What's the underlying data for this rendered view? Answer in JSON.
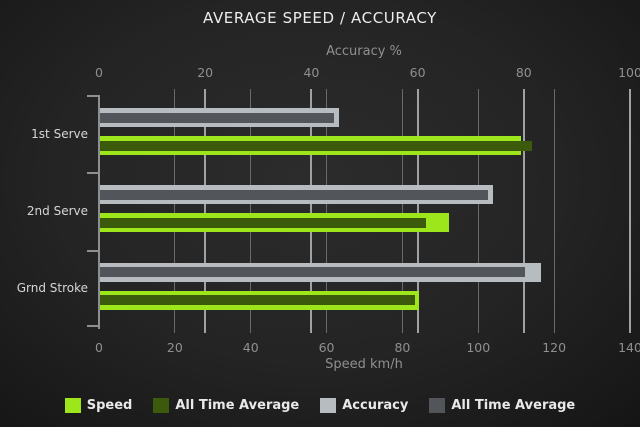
{
  "title": "AVERAGE SPEED / ACCURACY",
  "chart_data": {
    "type": "bar",
    "orientation": "horizontal",
    "title": "AVERAGE SPEED / ACCURACY",
    "categories": [
      "1st Serve",
      "2nd Serve",
      "Grnd Stroke"
    ],
    "axes": {
      "top": {
        "label": "Accuracy %",
        "min": 0,
        "max": 100,
        "ticks": [
          0,
          20,
          40,
          60,
          80,
          100
        ]
      },
      "bottom": {
        "label": "Speed km/h",
        "min": 0,
        "max": 140,
        "ticks": [
          0,
          20,
          40,
          60,
          80,
          100,
          120,
          140
        ]
      }
    },
    "series": [
      {
        "name": "Speed",
        "axis": "bottom",
        "color": "#9de61c",
        "role": "outer",
        "values": [
          111,
          92,
          84
        ]
      },
      {
        "name": "All Time Average",
        "axis": "bottom",
        "color": "#3c5a0c",
        "role": "inner",
        "values": [
          114,
          86,
          83
        ]
      },
      {
        "name": "Accuracy",
        "axis": "top",
        "color": "#b7bcc1",
        "role": "outer",
        "values": [
          45,
          74,
          83
        ]
      },
      {
        "name": "All Time Average",
        "axis": "top",
        "color": "#52565b",
        "role": "inner",
        "values": [
          44,
          73,
          80
        ]
      }
    ],
    "grid": true,
    "legend_position": "bottom",
    "legend": [
      "Speed",
      "All Time Average",
      "Accuracy",
      "All Time Average"
    ]
  }
}
